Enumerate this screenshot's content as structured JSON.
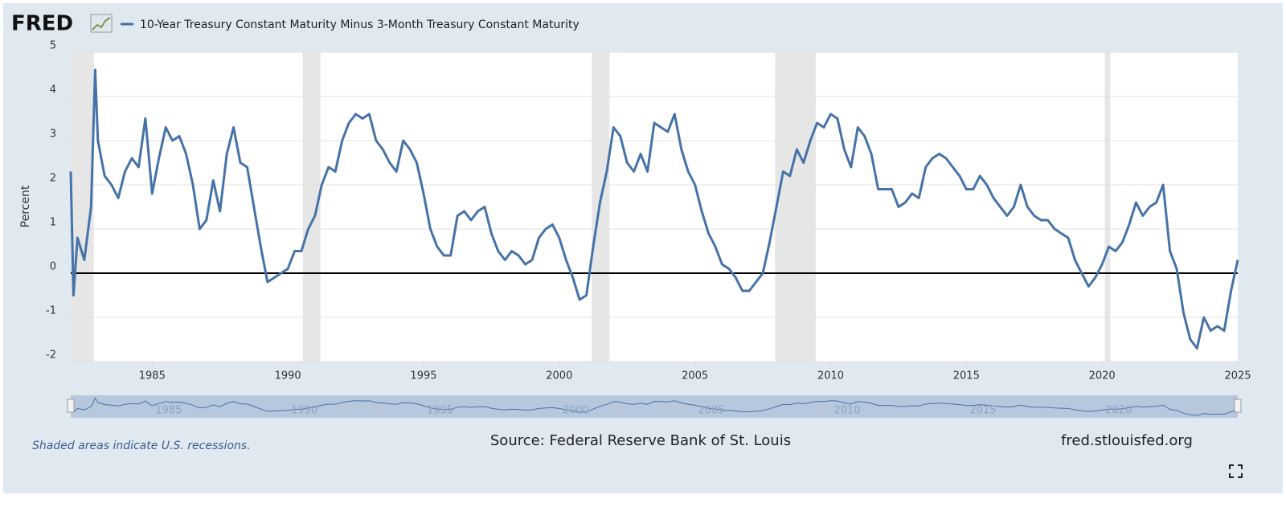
{
  "chart_data": {
    "type": "line",
    "logo": "FRED",
    "ylabel": "Percent",
    "note": "Shaded areas indicate U.S. recessions.",
    "source": "Source: Federal Reserve Bank of St. Louis",
    "site": "fred.stlouisfed.org",
    "grid": true,
    "xlim": [
      1982,
      2025
    ],
    "xticks": [
      1985,
      1990,
      1995,
      2000,
      2005,
      2010,
      2015,
      2020,
      2025
    ],
    "ylim": [
      -2,
      5
    ],
    "yticks": [
      -2,
      -1,
      0,
      1,
      2,
      3,
      4,
      5
    ],
    "recessions": [
      {
        "start": 1982.0,
        "end": 1982.85
      },
      {
        "start": 1990.55,
        "end": 1991.2
      },
      {
        "start": 2001.2,
        "end": 2001.85
      },
      {
        "start": 2007.95,
        "end": 2009.45
      },
      {
        "start": 2020.1,
        "end": 2020.3
      }
    ],
    "x": [
      1982.0,
      1982.1,
      1982.25,
      1982.5,
      1982.75,
      1982.9,
      1983.0,
      1983.25,
      1983.5,
      1983.75,
      1984.0,
      1984.25,
      1984.5,
      1984.75,
      1985.0,
      1985.25,
      1985.5,
      1985.75,
      1986.0,
      1986.25,
      1986.5,
      1986.75,
      1987.0,
      1987.25,
      1987.5,
      1987.75,
      1988.0,
      1988.25,
      1988.5,
      1988.75,
      1989.0,
      1989.25,
      1989.5,
      1989.75,
      1990.0,
      1990.25,
      1990.5,
      1990.75,
      1991.0,
      1991.25,
      1991.5,
      1991.75,
      1992.0,
      1992.25,
      1992.5,
      1992.75,
      1993.0,
      1993.25,
      1993.5,
      1993.75,
      1994.0,
      1994.25,
      1994.5,
      1994.75,
      1995.0,
      1995.25,
      1995.5,
      1995.75,
      1996.0,
      1996.25,
      1996.5,
      1996.75,
      1997.0,
      1997.25,
      1997.5,
      1997.75,
      1998.0,
      1998.25,
      1998.5,
      1998.75,
      1999.0,
      1999.25,
      1999.5,
      1999.75,
      2000.0,
      2000.25,
      2000.5,
      2000.75,
      2001.0,
      2001.25,
      2001.5,
      2001.75,
      2002.0,
      2002.25,
      2002.5,
      2002.75,
      2003.0,
      2003.25,
      2003.5,
      2003.75,
      2004.0,
      2004.25,
      2004.5,
      2004.75,
      2005.0,
      2005.25,
      2005.5,
      2005.75,
      2006.0,
      2006.25,
      2006.5,
      2006.75,
      2007.0,
      2007.25,
      2007.5,
      2007.75,
      2008.0,
      2008.25,
      2008.5,
      2008.75,
      2009.0,
      2009.25,
      2009.5,
      2009.75,
      2010.0,
      2010.25,
      2010.5,
      2010.75,
      2011.0,
      2011.25,
      2011.5,
      2011.75,
      2012.0,
      2012.25,
      2012.5,
      2012.75,
      2013.0,
      2013.25,
      2013.5,
      2013.75,
      2014.0,
      2014.25,
      2014.5,
      2014.75,
      2015.0,
      2015.25,
      2015.5,
      2015.75,
      2016.0,
      2016.25,
      2016.5,
      2016.75,
      2017.0,
      2017.25,
      2017.5,
      2017.75,
      2018.0,
      2018.25,
      2018.5,
      2018.75,
      2019.0,
      2019.25,
      2019.5,
      2019.75,
      2020.0,
      2020.25,
      2020.5,
      2020.75,
      2021.0,
      2021.25,
      2021.5,
      2021.75,
      2022.0,
      2022.25,
      2022.5,
      2022.75,
      2023.0,
      2023.25,
      2023.5,
      2023.75,
      2024.0,
      2024.25,
      2024.5,
      2024.75,
      2025.0
    ],
    "series": [
      {
        "name": "10-Year Treasury Constant Maturity Minus 3-Month Treasury Constant Maturity",
        "color": "#4572a7",
        "values": [
          2.3,
          -0.5,
          0.8,
          0.3,
          1.5,
          4.6,
          3.0,
          2.2,
          2.0,
          1.7,
          2.3,
          2.6,
          2.4,
          3.5,
          1.8,
          2.6,
          3.3,
          3.0,
          3.1,
          2.7,
          2.0,
          1.0,
          1.2,
          2.1,
          1.4,
          2.7,
          3.3,
          2.5,
          2.4,
          1.5,
          0.6,
          -0.2,
          -0.1,
          0.0,
          0.1,
          0.5,
          0.5,
          1.0,
          1.3,
          2.0,
          2.4,
          2.3,
          3.0,
          3.4,
          3.6,
          3.5,
          3.6,
          3.0,
          2.8,
          2.5,
          2.3,
          3.0,
          2.8,
          2.5,
          1.8,
          1.0,
          0.6,
          0.4,
          0.4,
          1.3,
          1.4,
          1.2,
          1.4,
          1.5,
          0.9,
          0.5,
          0.3,
          0.5,
          0.4,
          0.2,
          0.3,
          0.8,
          1.0,
          1.1,
          0.8,
          0.3,
          -0.1,
          -0.6,
          -0.5,
          0.6,
          1.6,
          2.3,
          3.3,
          3.1,
          2.5,
          2.3,
          2.7,
          2.3,
          3.4,
          3.3,
          3.2,
          3.6,
          2.8,
          2.3,
          2.0,
          1.4,
          0.9,
          0.6,
          0.2,
          0.1,
          -0.1,
          -0.4,
          -0.4,
          -0.2,
          0.0,
          0.7,
          1.5,
          2.3,
          2.2,
          2.8,
          2.5,
          3.0,
          3.4,
          3.3,
          3.6,
          3.5,
          2.8,
          2.4,
          3.3,
          3.1,
          2.7,
          1.9,
          1.9,
          1.9,
          1.5,
          1.6,
          1.8,
          1.7,
          2.4,
          2.6,
          2.7,
          2.6,
          2.4,
          2.2,
          1.9,
          1.9,
          2.2,
          2.0,
          1.7,
          1.5,
          1.3,
          1.5,
          2.0,
          1.5,
          1.3,
          1.2,
          1.2,
          1.0,
          0.9,
          0.8,
          0.3,
          0.0,
          -0.3,
          -0.1,
          0.2,
          0.6,
          0.5,
          0.7,
          1.1,
          1.6,
          1.3,
          1.5,
          1.6,
          2.0,
          0.5,
          0.1,
          -0.9,
          -1.5,
          -1.7,
          -1.0,
          -1.3,
          -1.2,
          -1.3,
          -0.4,
          0.3
        ]
      }
    ]
  }
}
